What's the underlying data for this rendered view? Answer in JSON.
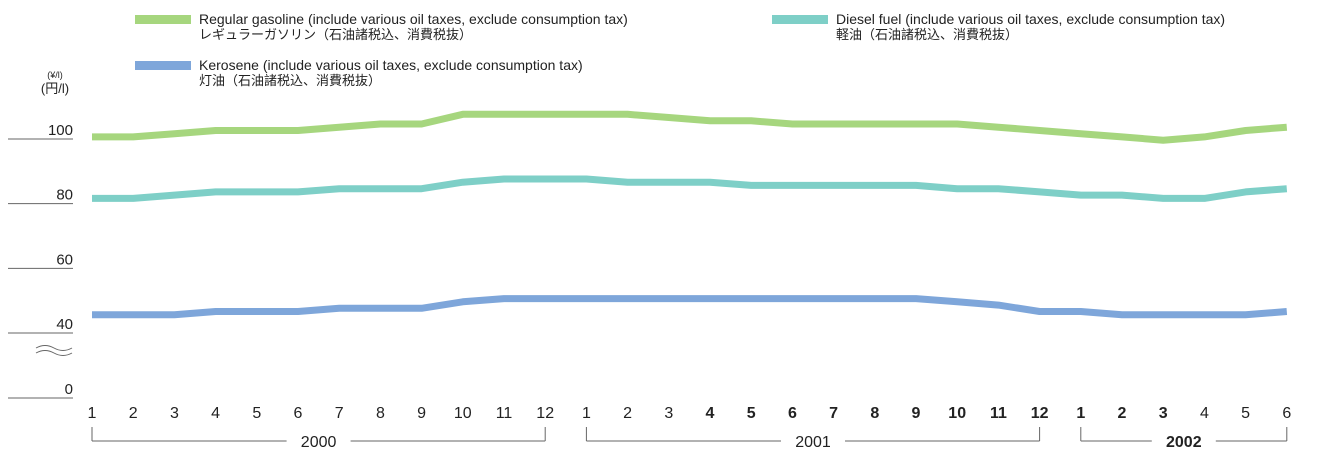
{
  "chart_data": {
    "type": "line",
    "y_unit": "(¥/l)",
    "y_unit_ja": "(円/l)",
    "yticks": [
      "100",
      "80",
      "60",
      "40",
      "0"
    ],
    "axis_break": true,
    "ylim": [
      0,
      100
    ],
    "x": [
      "1",
      "2",
      "3",
      "4",
      "5",
      "6",
      "7",
      "8",
      "9",
      "10",
      "11",
      "12",
      "1",
      "2",
      "3",
      "4",
      "5",
      "6",
      "7",
      "8",
      "9",
      "10",
      "11",
      "12",
      "1",
      "2",
      "3",
      "4",
      "5",
      "6"
    ],
    "x_bold": [
      false,
      false,
      false,
      false,
      false,
      false,
      false,
      false,
      false,
      false,
      false,
      false,
      false,
      false,
      false,
      true,
      true,
      true,
      true,
      true,
      true,
      true,
      true,
      true,
      true,
      true,
      true,
      false,
      false,
      false
    ],
    "years": [
      {
        "label": "2000",
        "start": 0,
        "end": 11,
        "bold": false
      },
      {
        "label": "2001",
        "start": 12,
        "end": 23,
        "bold": false
      },
      {
        "label": "2002",
        "start": 24,
        "end": 29,
        "bold": true
      }
    ],
    "series": [
      {
        "name": "Regular gasoline (include various oil taxes, exclude consumption tax)",
        "name_ja": "レギュラーガソリン（石油諸税込、消費税抜）",
        "color": "#a6d67e",
        "values": [
          96,
          96,
          97,
          98,
          98,
          98,
          99,
          100,
          100,
          103,
          103,
          103,
          103,
          103,
          102,
          101,
          101,
          100,
          100,
          100,
          100,
          100,
          99,
          98,
          97,
          96,
          95,
          96,
          98,
          99
        ]
      },
      {
        "name": "Diesel fuel (include various oil taxes, exclude consumption tax)",
        "name_ja": "軽油（石油諸税込、消費税抜）",
        "color": "#7ecfc7",
        "values": [
          77,
          77,
          78,
          79,
          79,
          79,
          80,
          80,
          80,
          82,
          83,
          83,
          83,
          82,
          82,
          82,
          81,
          81,
          81,
          81,
          81,
          80,
          80,
          79,
          78,
          78,
          77,
          77,
          79,
          80
        ]
      },
      {
        "name": "Kerosene (include various oil taxes, exclude consumption tax)",
        "name_ja": "灯油（石油諸税込、消費税抜）",
        "color": "#7ea6da",
        "values": [
          41,
          41,
          41,
          42,
          42,
          42,
          43,
          43,
          43,
          45,
          46,
          46,
          46,
          46,
          46,
          46,
          46,
          46,
          46,
          46,
          46,
          45,
          44,
          42,
          42,
          41,
          41,
          41,
          41,
          42
        ]
      }
    ]
  }
}
